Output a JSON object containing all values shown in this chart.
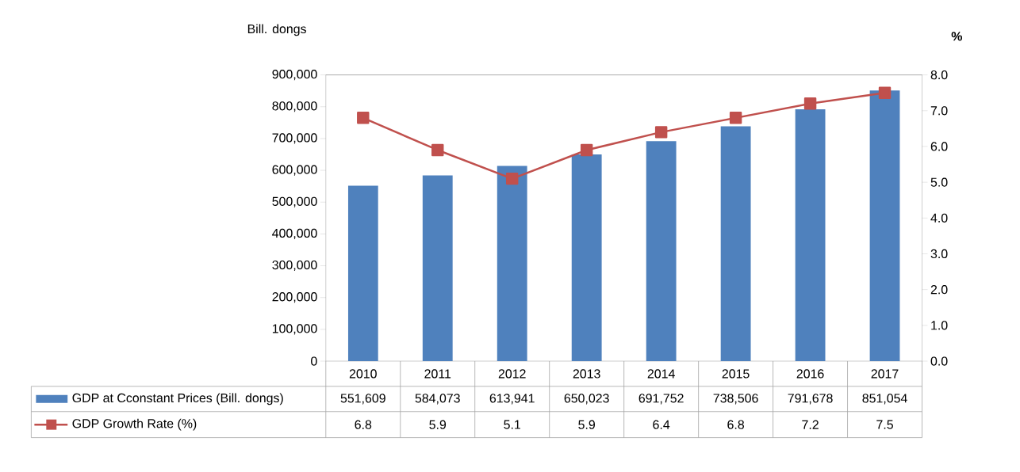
{
  "chart_data": {
    "type": "bar",
    "ylabel": "Bill. dongs",
    "y2label": "%",
    "categories": [
      "2010",
      "2011",
      "2012",
      "2013",
      "2014",
      "2015",
      "2016",
      "2017"
    ],
    "series": [
      {
        "name": "GDP at Cconstant Prices (Bill. dongs)",
        "color": "#4f81bd",
        "values": [
          551609,
          584073,
          613941,
          650023,
          691752,
          738506,
          791678,
          851054
        ],
        "value_labels": [
          "551,609",
          "584,073",
          "613,941",
          "650,023",
          "691,752",
          "738,506",
          "791,678",
          "851,054"
        ]
      },
      {
        "name": "GDP Growth Rate (%)",
        "type": "line",
        "axis": "y2",
        "color": "#c0504d",
        "marker": "square",
        "line_style": "solid",
        "values": [
          6.8,
          5.9,
          5.1,
          5.9,
          6.4,
          6.8,
          7.2,
          7.5
        ]
      }
    ],
    "ylim": [
      0,
      900000
    ],
    "yticks": [
      0,
      {
        "value": 100000,
        "label": "100,000"
      },
      {
        "value": 200000,
        "label": "200,000"
      },
      {
        "value": 300000,
        "label": "300,000"
      },
      {
        "value": 400000,
        "label": "400,000"
      },
      {
        "value": 500000,
        "label": "500,000"
      },
      {
        "value": 600000,
        "label": "600,000"
      },
      {
        "value": 700000,
        "label": "700,000"
      },
      {
        "value": 800000,
        "label": "800,000"
      },
      {
        "value": 900000,
        "label": "900,000"
      }
    ],
    "y2lim": [
      0,
      8
    ],
    "y2ticks": [
      {
        "value": 0,
        "label": "0.0"
      },
      {
        "value": 1,
        "label": "1.0"
      },
      {
        "value": 2,
        "label": "2.0"
      },
      {
        "value": 3,
        "label": "3.0"
      },
      {
        "value": 4,
        "label": "4.0"
      },
      {
        "value": 5,
        "label": "5.0"
      },
      {
        "value": 6,
        "label": "6.0"
      },
      {
        "value": 7,
        "label": "7.0"
      },
      {
        "value": 8,
        "label": "8.0"
      }
    ],
    "data_labels": true,
    "legend": "bottom"
  }
}
